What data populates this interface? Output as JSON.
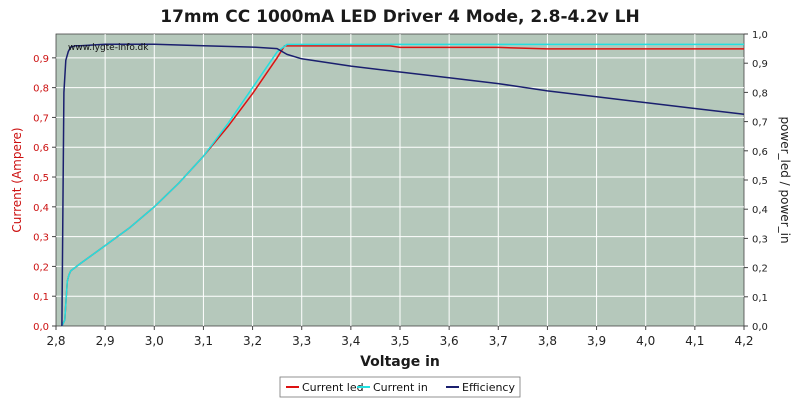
{
  "chart_data": {
    "type": "line",
    "title": "17mm CC 1000mA LED Driver 4 Mode, 2.8-4.2v LH",
    "xlabel": "Voltage in",
    "ylabel_left": "Current (Ampere)",
    "ylabel_right": "power_led / power_in",
    "watermark": "www.lygte-info.dk",
    "xlim": [
      2.8,
      4.2
    ],
    "ylim_left": [
      0.0,
      0.98
    ],
    "ylim_right": [
      0.0,
      1.0
    ],
    "x_ticks": [
      "2,8",
      "2,9",
      "3,0",
      "3,1",
      "3,2",
      "3,3",
      "3,4",
      "3,5",
      "3,6",
      "3,7",
      "3,8",
      "3,9",
      "4,0",
      "4,1",
      "4,2"
    ],
    "y_left_ticks": [
      "0,0",
      "0,1",
      "0,2",
      "0,3",
      "0,4",
      "0,5",
      "0,6",
      "0,7",
      "0,8",
      "0,9"
    ],
    "y_right_ticks": [
      "0,0",
      "0,1",
      "0,2",
      "0,3",
      "0,4",
      "0,5",
      "0,6",
      "0,7",
      "0,8",
      "0,9",
      "1,0"
    ],
    "grid": true,
    "legend_position": "bottom-center",
    "colors": {
      "plot_bg": "#b5c8bb",
      "grid": "#ffffff",
      "title": "#1a1a1a",
      "left_axis": "#cc1111",
      "right_axis": "#333333"
    },
    "series": [
      {
        "name": "Current led",
        "axis": "left",
        "color": "#dd1111",
        "x": [
          2.812,
          2.818,
          2.821,
          2.823,
          2.826,
          2.83,
          2.85,
          2.9,
          2.95,
          3.0,
          3.05,
          3.1,
          3.15,
          3.2,
          3.25,
          3.265,
          3.3,
          3.4,
          3.48,
          3.5,
          3.6,
          3.7,
          3.8,
          3.9,
          4.0,
          4.1,
          4.2
        ],
        "y": [
          0.0,
          0.02,
          0.1,
          0.15,
          0.17,
          0.185,
          0.21,
          0.27,
          0.33,
          0.4,
          0.48,
          0.57,
          0.67,
          0.78,
          0.9,
          0.94,
          0.94,
          0.94,
          0.94,
          0.935,
          0.935,
          0.935,
          0.93,
          0.93,
          0.93,
          0.93,
          0.93
        ]
      },
      {
        "name": "Current in",
        "axis": "left",
        "color": "#22e0e0",
        "x": [
          2.812,
          2.818,
          2.821,
          2.823,
          2.826,
          2.83,
          2.85,
          2.9,
          2.95,
          3.0,
          3.05,
          3.1,
          3.15,
          3.2,
          3.25,
          3.27,
          3.3,
          3.5,
          3.7,
          3.9,
          4.1,
          4.2
        ],
        "y": [
          0.0,
          0.02,
          0.1,
          0.15,
          0.17,
          0.185,
          0.21,
          0.27,
          0.33,
          0.4,
          0.48,
          0.57,
          0.68,
          0.8,
          0.92,
          0.945,
          0.945,
          0.945,
          0.945,
          0.945,
          0.945,
          0.945
        ]
      },
      {
        "name": "Efficiency",
        "axis": "right",
        "color": "#1a1f6e",
        "x": [
          2.812,
          2.814,
          2.816,
          2.82,
          2.825,
          2.83,
          2.84,
          2.85,
          2.9,
          2.95,
          3.0,
          3.1,
          3.2,
          3.25,
          3.27,
          3.3,
          3.4,
          3.5,
          3.6,
          3.7,
          3.8,
          3.9,
          4.0,
          4.1,
          4.2
        ],
        "y": [
          0.0,
          0.4,
          0.8,
          0.91,
          0.94,
          0.955,
          0.96,
          0.96,
          0.965,
          0.965,
          0.965,
          0.96,
          0.955,
          0.95,
          0.93,
          0.915,
          0.89,
          0.87,
          0.85,
          0.83,
          0.805,
          0.785,
          0.765,
          0.745,
          0.725
        ]
      }
    ]
  }
}
